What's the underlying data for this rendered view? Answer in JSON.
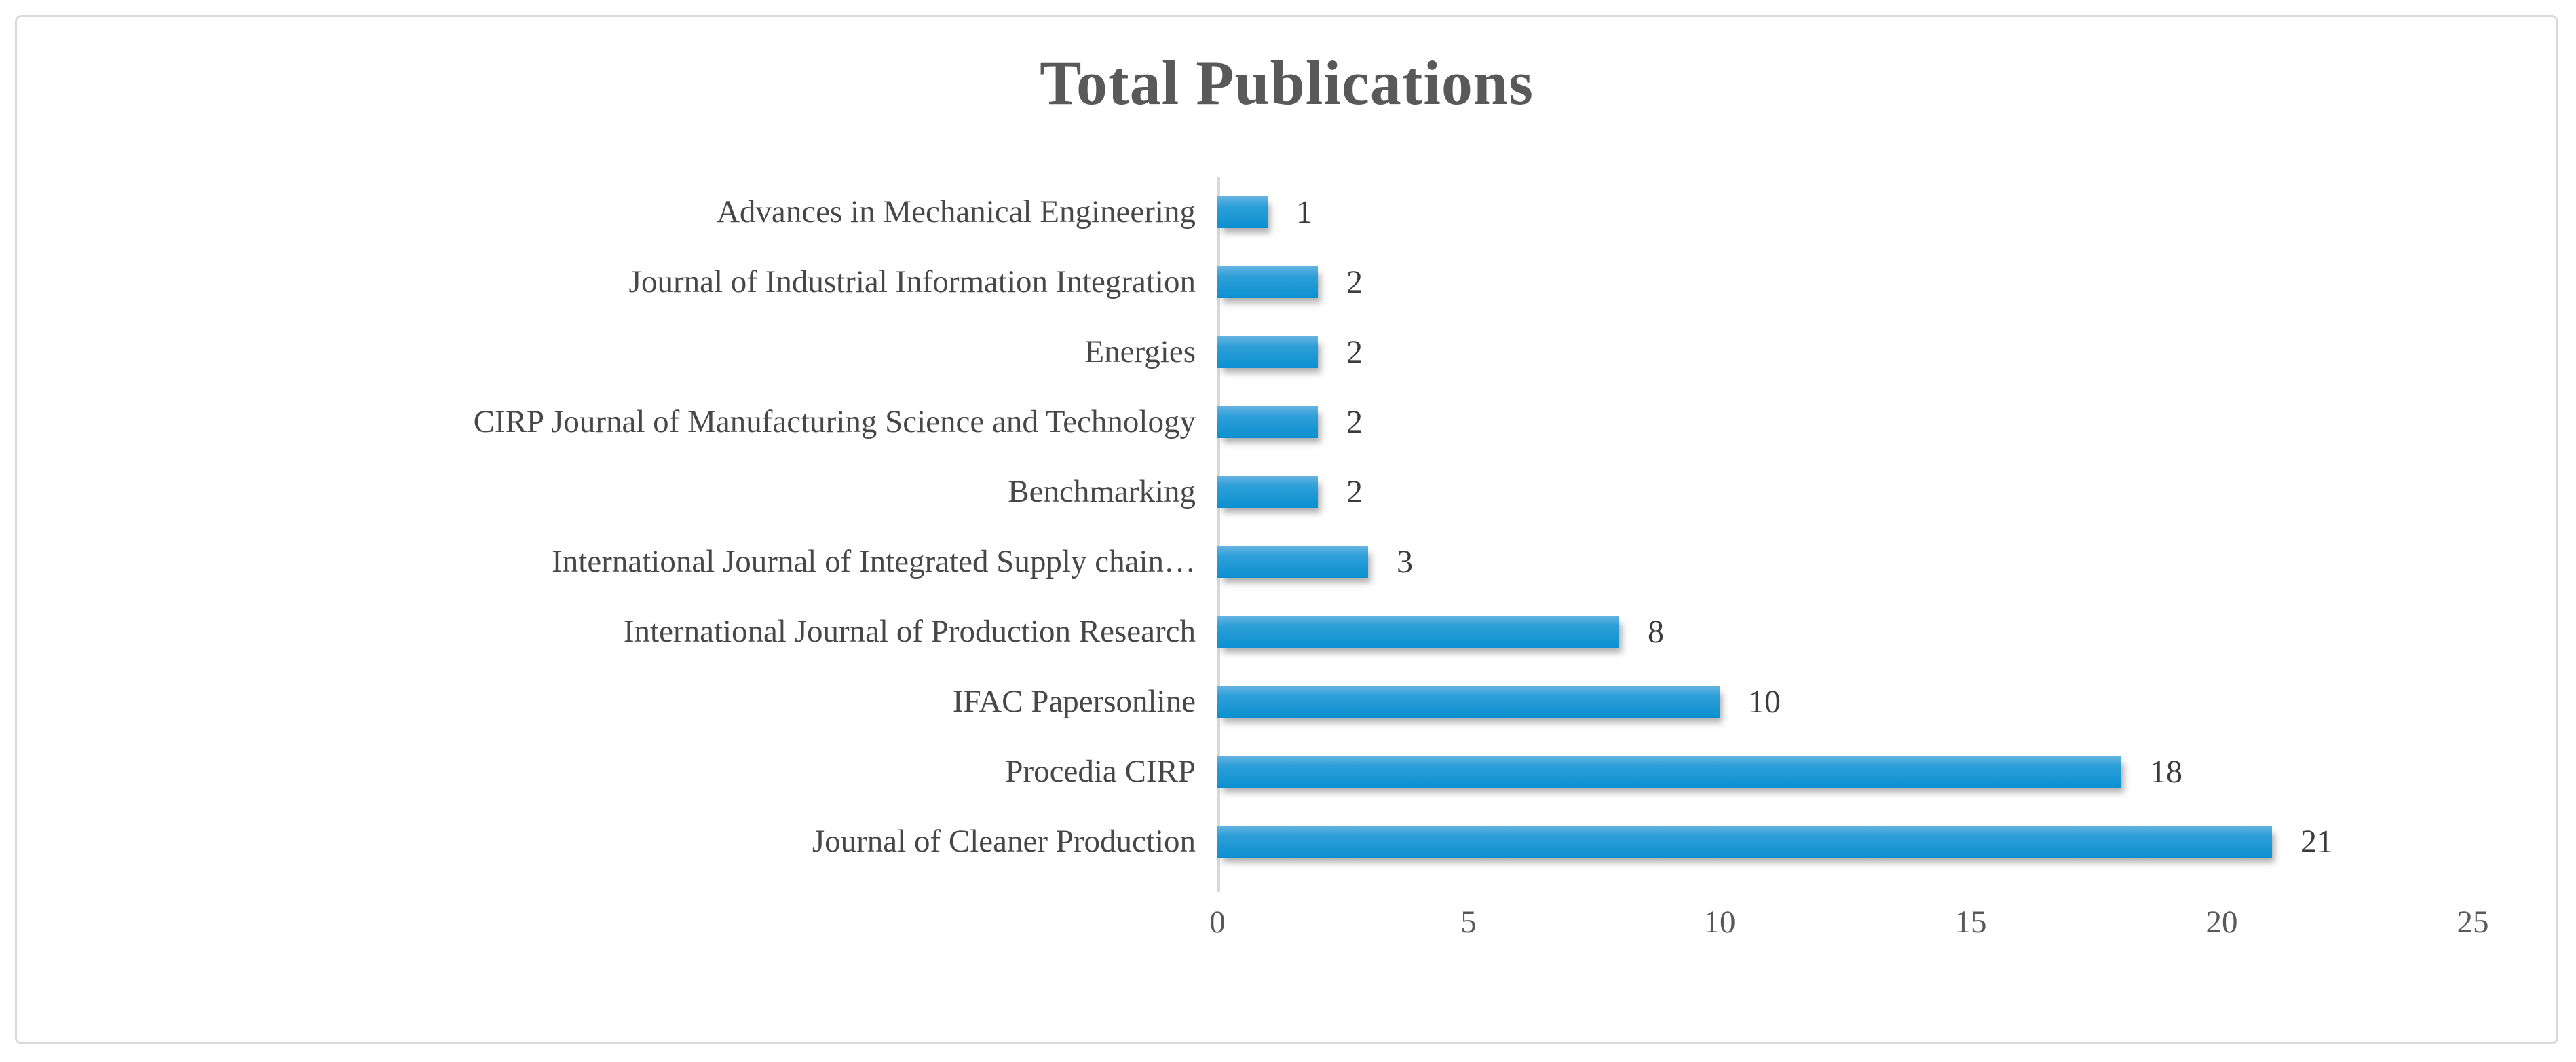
{
  "page": {
    "background": "#ffffff",
    "frame_border_color": "#d9d9d9"
  },
  "chart_data": {
    "type": "bar",
    "orientation": "horizontal",
    "title": "Total Publications",
    "categories": [
      "Advances in Mechanical Engineering",
      "Journal of Industrial Information Integration",
      "Energies",
      "CIRP Journal of Manufacturing Science and Technology",
      "Benchmarking",
      "International Journal of Integrated Supply chain…",
      "International Journal of Production Research",
      "IFAC Papersonline",
      "Procedia CIRP",
      "Journal of Cleaner Production"
    ],
    "values": [
      1,
      2,
      2,
      2,
      2,
      3,
      8,
      10,
      18,
      21
    ],
    "data_labels_shown": true,
    "xlabel": "",
    "ylabel": "",
    "xlim": [
      0,
      25
    ],
    "x_ticks": [
      0,
      5,
      10,
      15,
      20,
      25
    ],
    "grid": false,
    "legend": false,
    "colors": {
      "bar_gradient_top": "#66b4e1",
      "bar_gradient_mid": "#2e9fd8",
      "bar_gradient_bottom": "#0b90d0",
      "title_text": "#595959",
      "category_text": "#474747",
      "value_text": "#3b3b3b",
      "tick_text": "#595959",
      "axis_line": "#d9d9d9"
    }
  }
}
